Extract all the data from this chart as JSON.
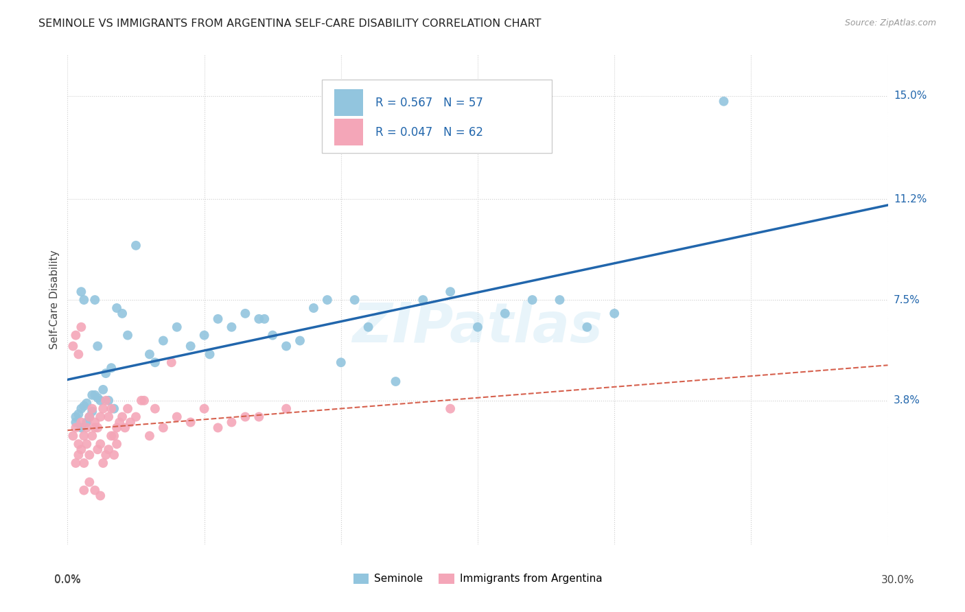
{
  "title": "SEMINOLE VS IMMIGRANTS FROM ARGENTINA SELF-CARE DISABILITY CORRELATION CHART",
  "source": "Source: ZipAtlas.com",
  "ylabel": "Self-Care Disability",
  "ytick_labels": [
    "3.8%",
    "7.5%",
    "11.2%",
    "15.0%"
  ],
  "ytick_values": [
    3.8,
    7.5,
    11.2,
    15.0
  ],
  "xlim": [
    0.0,
    30.0
  ],
  "ylim": [
    -1.5,
    16.5
  ],
  "legend_blue_R": "R = 0.567",
  "legend_blue_N": "N = 57",
  "legend_pink_R": "R = 0.047",
  "legend_pink_N": "N = 62",
  "legend_label_blue": "Seminole",
  "legend_label_pink": "Immigrants from Argentina",
  "blue_color": "#92c5de",
  "pink_color": "#f4a6b8",
  "blue_line_color": "#2166ac",
  "pink_line_color": "#d6604d",
  "pink_line_dashed": true,
  "watermark": "ZIPatlas",
  "blue_scatter_x": [
    0.5,
    1.0,
    0.8,
    1.2,
    0.3,
    0.6,
    0.4,
    0.7,
    0.9,
    1.1,
    1.3,
    1.5,
    1.7,
    0.5,
    0.6,
    1.0,
    1.4,
    1.6,
    1.8,
    2.0,
    2.5,
    3.0,
    3.5,
    4.0,
    4.5,
    5.0,
    5.5,
    6.0,
    6.5,
    7.0,
    7.5,
    8.0,
    8.5,
    9.0,
    9.5,
    10.0,
    10.5,
    11.0,
    12.0,
    13.0,
    14.0,
    15.0,
    16.0,
    17.0,
    18.0,
    19.0,
    20.0,
    0.3,
    0.5,
    0.7,
    0.9,
    1.1,
    2.2,
    24.0,
    3.2,
    5.2,
    7.2
  ],
  "blue_scatter_y": [
    3.5,
    4.0,
    3.2,
    3.8,
    3.0,
    3.6,
    3.3,
    3.7,
    3.4,
    3.9,
    4.2,
    3.8,
    3.5,
    7.8,
    7.5,
    7.5,
    4.8,
    5.0,
    7.2,
    7.0,
    9.5,
    5.5,
    6.0,
    6.5,
    5.8,
    6.2,
    6.8,
    6.5,
    7.0,
    6.8,
    6.2,
    5.8,
    6.0,
    7.2,
    7.5,
    5.2,
    7.5,
    6.5,
    4.5,
    7.5,
    7.8,
    6.5,
    7.0,
    7.5,
    7.5,
    6.5,
    7.0,
    3.2,
    2.8,
    3.0,
    4.0,
    5.8,
    6.2,
    14.8,
    5.2,
    5.5,
    6.8
  ],
  "pink_scatter_x": [
    0.2,
    0.3,
    0.5,
    0.4,
    0.6,
    0.7,
    0.8,
    0.9,
    1.0,
    1.1,
    1.2,
    1.3,
    1.4,
    1.5,
    1.6,
    1.7,
    1.8,
    1.9,
    2.0,
    2.1,
    2.2,
    2.3,
    2.5,
    2.7,
    3.0,
    3.2,
    3.5,
    4.0,
    4.5,
    5.0,
    5.5,
    6.0,
    7.0,
    8.0,
    0.3,
    0.4,
    0.5,
    0.6,
    0.7,
    0.8,
    0.9,
    1.0,
    1.1,
    1.2,
    1.3,
    1.4,
    1.5,
    1.6,
    1.7,
    1.8,
    0.2,
    0.3,
    0.4,
    0.5,
    6.5,
    14.0,
    0.6,
    0.8,
    1.0,
    1.2,
    2.8,
    3.8
  ],
  "pink_scatter_y": [
    2.5,
    2.8,
    3.0,
    2.2,
    2.5,
    2.8,
    3.2,
    3.5,
    3.0,
    2.8,
    3.2,
    3.5,
    3.8,
    3.2,
    3.5,
    2.5,
    2.8,
    3.0,
    3.2,
    2.8,
    3.5,
    3.0,
    3.2,
    3.8,
    2.5,
    3.5,
    2.8,
    3.2,
    3.0,
    3.5,
    2.8,
    3.0,
    3.2,
    3.5,
    1.5,
    1.8,
    2.0,
    1.5,
    2.2,
    1.8,
    2.5,
    2.8,
    2.0,
    2.2,
    1.5,
    1.8,
    2.0,
    2.5,
    1.8,
    2.2,
    5.8,
    6.2,
    5.5,
    6.5,
    3.2,
    3.5,
    0.5,
    0.8,
    0.5,
    0.3,
    3.8,
    5.2
  ]
}
